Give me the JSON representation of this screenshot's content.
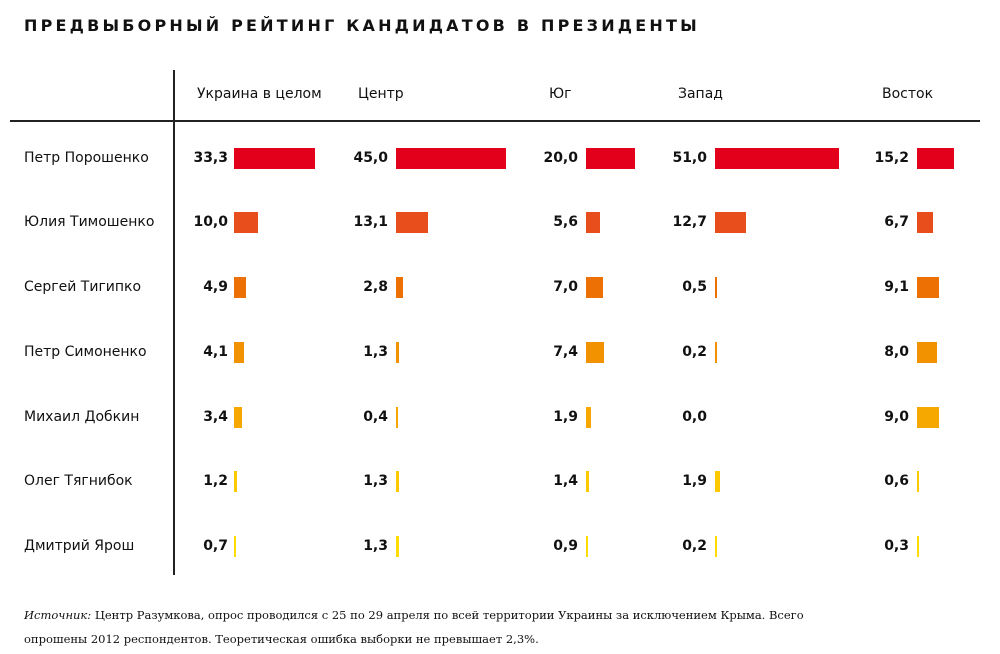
{
  "chart_data": {
    "type": "bar",
    "title": "ПРЕДВЫБОРНЫЙ РЕЙТИНГ КАНДИДАТОВ В ПРЕЗИДЕНТЫ",
    "columns": [
      "Украина в целом",
      "Центр",
      "Юг",
      "Запад",
      "Восток"
    ],
    "rows": [
      {
        "name": "Петр Порошенко",
        "values": [
          33.3,
          45.0,
          20.0,
          51.0,
          15.2
        ],
        "labels": [
          "33,3",
          "45,0",
          "20,0",
          "51,0",
          "15,2"
        ],
        "color": "#e2001a"
      },
      {
        "name": "Юлия Тимошенко",
        "values": [
          10.0,
          13.1,
          5.6,
          12.7,
          6.7
        ],
        "labels": [
          "10,0",
          "13,1",
          "5,6",
          "12,7",
          "6,7"
        ],
        "color": "#e84e1b"
      },
      {
        "name": "Сергей Тигипко",
        "values": [
          4.9,
          2.8,
          7.0,
          0.5,
          9.1
        ],
        "labels": [
          "4,9",
          "2,8",
          "7,0",
          "0,5",
          "9,1"
        ],
        "color": "#ec7004"
      },
      {
        "name": "Петр Симоненко",
        "values": [
          4.1,
          1.3,
          7.4,
          0.2,
          8.0
        ],
        "labels": [
          "4,1",
          "1,3",
          "7,4",
          "0,2",
          "8,0"
        ],
        "color": "#f39200"
      },
      {
        "name": "Михаил Добкин",
        "values": [
          3.4,
          0.4,
          1.9,
          0.0,
          9.0
        ],
        "labels": [
          "3,4",
          "0,4",
          "1,9",
          "0,0",
          "9,0"
        ],
        "color": "#f6a800"
      },
      {
        "name": "Олег Тягнибок",
        "values": [
          1.2,
          1.3,
          1.4,
          1.9,
          0.6
        ],
        "labels": [
          "1,2",
          "1,3",
          "1,4",
          "1,9",
          "0,6"
        ],
        "color": "#fcc800"
      },
      {
        "name": "Дмитрий Ярош",
        "values": [
          0.7,
          1.3,
          0.9,
          0.2,
          0.3
        ],
        "labels": [
          "0,7",
          "1,3",
          "0,9",
          "0,2",
          "0,3"
        ],
        "color": "#fddc00"
      }
    ],
    "unit": "%"
  },
  "source": {
    "label": "Источник:",
    "text": " Центр Разумкова, опрос проводился с 25 по 29 апреля по всей территории Украины за исключением Крыма. Всего опрошены 2012 респондентов. Теоретическая ошибка выборки не превышает 2,3%."
  }
}
